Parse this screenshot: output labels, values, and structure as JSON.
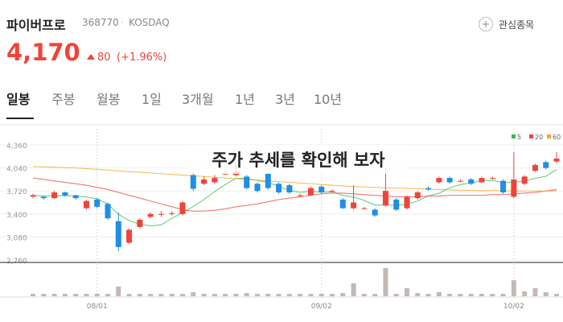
{
  "header": {
    "name": "파이버프로",
    "code": "368770",
    "market": "KOSDAQ",
    "watch_button": "관심종목",
    "price": "4,170",
    "change": "80",
    "change_pct": "(+1.96%)"
  },
  "tabs": [
    "일봉",
    "주봉",
    "월봉",
    "1일",
    "3개월",
    "1년",
    "3년",
    "10년"
  ],
  "chart_data": {
    "type": "candlestick",
    "overlay": "주가 추세를 확인해 보자",
    "up_color": "#f0433a",
    "down_color": "#1f8ee6",
    "volume_color": "#c4b9b6",
    "x": [
      null,
      null,
      null,
      null,
      null,
      null,
      "08/01",
      null,
      null,
      null,
      null,
      null,
      null,
      null,
      null,
      null,
      null,
      null,
      null,
      null,
      null,
      null,
      null,
      null,
      null,
      null,
      null,
      "09/02",
      null,
      null,
      null,
      null,
      null,
      null,
      null,
      null,
      null,
      null,
      null,
      null,
      null,
      null,
      null,
      null,
      null,
      "10/02",
      null,
      null,
      null,
      null
    ],
    "open": [
      3640,
      3640,
      3620,
      3700,
      3660,
      3480,
      3600,
      3540,
      3300,
      3000,
      3220,
      3360,
      3400,
      3400,
      3400,
      3940,
      3820,
      3840,
      3960,
      3940,
      3920,
      3820,
      3960,
      3820,
      3800,
      3660,
      3660,
      3780,
      3720,
      3600,
      3480,
      3480,
      3460,
      3520,
      3600,
      3480,
      3620,
      3760,
      3840,
      3900,
      3860,
      3880,
      3840,
      3900,
      3860,
      3640,
      3820,
      4000,
      4120,
      4130
    ],
    "high": [
      3680,
      3650,
      3720,
      3710,
      3670,
      3600,
      3620,
      3560,
      3420,
      3200,
      3340,
      3420,
      3440,
      3440,
      3580,
      3980,
      3920,
      3940,
      4000,
      4100,
      3940,
      3840,
      3980,
      3840,
      3820,
      3680,
      3780,
      3800,
      3740,
      3620,
      3800,
      3500,
      3480,
      4040,
      3620,
      3660,
      3720,
      3780,
      3920,
      3920,
      3880,
      3900,
      3920,
      3920,
      3880,
      4260,
      3940,
      4100,
      4140,
      4260
    ],
    "low": [
      3620,
      3600,
      3610,
      3640,
      3600,
      3460,
      3480,
      3320,
      2880,
      2980,
      3200,
      3340,
      3360,
      3380,
      3380,
      3720,
      3800,
      3820,
      3940,
      3920,
      3740,
      3700,
      3740,
      3680,
      3680,
      3640,
      3650,
      3680,
      3700,
      3470,
      3460,
      3460,
      3360,
      3500,
      3440,
      3460,
      3600,
      3720,
      3820,
      3820,
      3840,
      3800,
      3830,
      3880,
      3680,
      3620,
      3800,
      3980,
      4020,
      4100
    ],
    "close": [
      3660,
      3620,
      3700,
      3660,
      3620,
      3580,
      3500,
      3340,
      2940,
      3180,
      3320,
      3400,
      3400,
      3410,
      3560,
      3750,
      3880,
      3900,
      3960,
      3980,
      3760,
      3720,
      3760,
      3700,
      3700,
      3660,
      3760,
      3700,
      3720,
      3480,
      3560,
      3480,
      3380,
      3720,
      3460,
      3640,
      3700,
      3740,
      3900,
      3840,
      3860,
      3820,
      3900,
      3900,
      3700,
      3880,
      3920,
      4080,
      4040,
      4170
    ],
    "volume": [
      3,
      3,
      3,
      3,
      3,
      3,
      3,
      3,
      12,
      3,
      3,
      3,
      3,
      3,
      3,
      5,
      3,
      3,
      3,
      3,
      4,
      3,
      3,
      3,
      3,
      3,
      3,
      3,
      3,
      4,
      16,
      3,
      3,
      35,
      3,
      10,
      4,
      3,
      5,
      3,
      3,
      3,
      3,
      3,
      3,
      20,
      6,
      10,
      5,
      3
    ],
    "volume_lim": [
      0,
      40
    ],
    "ylim": [
      2760,
      4360
    ],
    "yticks": [
      {
        "value": 2760,
        "label": "2,760"
      },
      {
        "value": 3080,
        "label": "3,080"
      },
      {
        "value": 3400,
        "label": "3,400"
      },
      {
        "value": 3720,
        "label": "3,720"
      },
      {
        "value": 4040,
        "label": "4,040"
      },
      {
        "value": 4360,
        "label": "4,360"
      }
    ],
    "series": [
      {
        "name": "5",
        "color": "#2fc04b",
        "values": [
          3660,
          3650,
          3650,
          3655,
          3652,
          3636,
          3612,
          3540,
          3396,
          3308,
          3256,
          3236,
          3248,
          3342,
          3418,
          3504,
          3600,
          3712,
          3810,
          3894,
          3896,
          3864,
          3836,
          3784,
          3728,
          3700,
          3716,
          3704,
          3708,
          3660,
          3636,
          3588,
          3524,
          3524,
          3520,
          3536,
          3580,
          3652,
          3688,
          3764,
          3808,
          3832,
          3864,
          3864,
          3836,
          3840,
          3860,
          3896,
          3924,
          4018
        ]
      },
      {
        "name": "20",
        "color": "#f0433a",
        "values": [
          3900,
          3880,
          3860,
          3840,
          3820,
          3800,
          3770,
          3740,
          3700,
          3660,
          3620,
          3580,
          3540,
          3500,
          3460,
          3440,
          3440,
          3450,
          3470,
          3500,
          3520,
          3540,
          3570,
          3600,
          3620,
          3640,
          3660,
          3680,
          3690,
          3690,
          3680,
          3670,
          3660,
          3650,
          3640,
          3640,
          3640,
          3650,
          3650,
          3660,
          3660,
          3660,
          3660,
          3670,
          3670,
          3680,
          3690,
          3700,
          3720,
          3740
        ]
      },
      {
        "name": "60",
        "color": "#f5a623",
        "values": [
          4060,
          4055,
          4050,
          4045,
          4040,
          4030,
          4020,
          4010,
          4000,
          3990,
          3980,
          3970,
          3960,
          3950,
          3940,
          3930,
          3920,
          3910,
          3900,
          3890,
          3880,
          3870,
          3860,
          3850,
          3840,
          3830,
          3820,
          3810,
          3800,
          3790,
          3780,
          3775,
          3770,
          3765,
          3760,
          3755,
          3750,
          3745,
          3740,
          3735,
          3730,
          3728,
          3726,
          3724,
          3722,
          3720,
          3720,
          3720,
          3720,
          3720
        ]
      }
    ]
  }
}
